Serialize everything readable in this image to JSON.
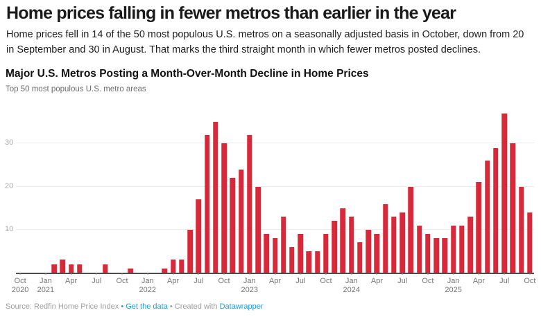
{
  "header": {
    "headline": "Home prices falling in fewer metros than earlier in the year",
    "description": "Home prices fell in 14 of the 50 most populous U.S. metros on a seasonally adjusted basis in October, down from 20 in September and 30 in August. That marks the third straight month in which fewer metros posted declines."
  },
  "chart_data": {
    "type": "bar",
    "title": "Major U.S. Metros Posting a Month-Over-Month Decline in Home Prices",
    "subtitle": "Top 50 most populous U.S. metro areas",
    "bar_color": "#d8293a",
    "grid": "horizontal",
    "legend": "none",
    "ylim": [
      0,
      38.6
    ],
    "yticks": [
      10,
      20,
      30
    ],
    "months": [
      "Oct 2020",
      "Nov 2020",
      "Dec 2020",
      "Jan 2021",
      "Feb 2021",
      "Mar 2021",
      "Apr 2021",
      "May 2021",
      "Jun 2021",
      "Jul 2021",
      "Aug 2021",
      "Sep 2021",
      "Oct 2021",
      "Nov 2021",
      "Dec 2021",
      "Jan 2022",
      "Feb 2022",
      "Mar 2022",
      "Apr 2022",
      "May 2022",
      "Jun 2022",
      "Jul 2022",
      "Aug 2022",
      "Sep 2022",
      "Oct 2022",
      "Nov 2022",
      "Dec 2022",
      "Jan 2023",
      "Feb 2023",
      "Mar 2023",
      "Apr 2023",
      "May 2023",
      "Jun 2023",
      "Jul 2023",
      "Aug 2023",
      "Sep 2023",
      "Oct 2023",
      "Nov 2023",
      "Dec 2023",
      "Jan 2024",
      "Feb 2024",
      "Mar 2024",
      "Apr 2024",
      "May 2024",
      "Jun 2024",
      "Jul 2024",
      "Aug 2024",
      "Sep 2024",
      "Oct 2024",
      "Nov 2024",
      "Dec 2024",
      "Jan 2025",
      "Feb 2025",
      "Mar 2025",
      "Apr 2025",
      "May 2025",
      "Jun 2025",
      "Jul 2025",
      "Aug 2025",
      "Sep 2025",
      "Oct 2025"
    ],
    "values": [
      0,
      0,
      0,
      0,
      2,
      3,
      2,
      2,
      0,
      0,
      2,
      0,
      0,
      1,
      0,
      0,
      0,
      1,
      3,
      3,
      10,
      17,
      32,
      35,
      30,
      22,
      24,
      32,
      20,
      9,
      8,
      13,
      6,
      9,
      5,
      5,
      9,
      12,
      15,
      13,
      7,
      10,
      9,
      16,
      13,
      14,
      20,
      11,
      9,
      8,
      8,
      11,
      11,
      13,
      21,
      26,
      29,
      37,
      30,
      20,
      14
    ],
    "x_ticks": [
      {
        "i": 0,
        "month": "Oct",
        "year": "2020"
      },
      {
        "i": 3,
        "month": "Jan",
        "year": "2021"
      },
      {
        "i": 6,
        "month": "Apr"
      },
      {
        "i": 9,
        "month": "Jul"
      },
      {
        "i": 12,
        "month": "Oct"
      },
      {
        "i": 15,
        "month": "Jan",
        "year": "2022"
      },
      {
        "i": 18,
        "month": "Apr"
      },
      {
        "i": 21,
        "month": "Jul"
      },
      {
        "i": 24,
        "month": "Oct"
      },
      {
        "i": 27,
        "month": "Jan",
        "year": "2023"
      },
      {
        "i": 30,
        "month": "Apr"
      },
      {
        "i": 33,
        "month": "Jul"
      },
      {
        "i": 36,
        "month": "Oct"
      },
      {
        "i": 39,
        "month": "Jan",
        "year": "2024"
      },
      {
        "i": 42,
        "month": "Apr"
      },
      {
        "i": 45,
        "month": "Jul"
      },
      {
        "i": 48,
        "month": "Oct"
      },
      {
        "i": 51,
        "month": "Jan",
        "year": "2025"
      },
      {
        "i": 54,
        "month": "Apr"
      },
      {
        "i": 57,
        "month": "Jul"
      },
      {
        "i": 60,
        "month": "Oct"
      }
    ]
  },
  "footer": {
    "source": "Source: Redfin Home Price Index",
    "dot1": "•",
    "get_data_link": "Get the data",
    "dot2": "•",
    "created_with": "Created with",
    "datawrapper_link": "Datawrapper"
  },
  "colors": {
    "bar_red": "#d8293a",
    "link_blue": "#1e9bd8",
    "gridline": "#ededed",
    "axis_line": "#4c4c4c"
  }
}
